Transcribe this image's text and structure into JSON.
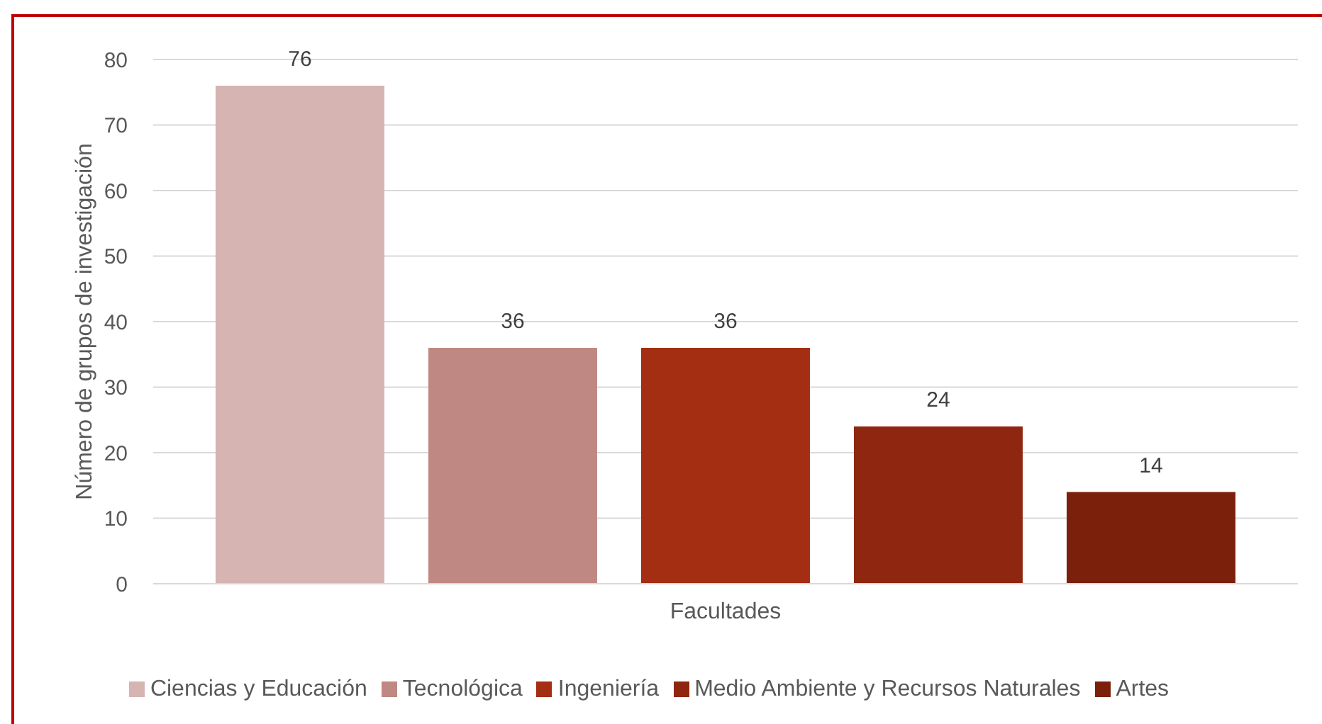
{
  "chart_data": {
    "type": "bar",
    "categories": [
      "Facultades"
    ],
    "ylabel": "Número de grupos de investigación",
    "series": [
      {
        "name": "Ciencias y Educación",
        "color": "#d5b4b2",
        "values": [
          76
        ]
      },
      {
        "name": "Tecnológica",
        "color": "#bf8882",
        "values": [
          36
        ]
      },
      {
        "name": "Ingeniería",
        "color": "#a32e12",
        "values": [
          36
        ]
      },
      {
        "name": "Medio Ambiente y Recursos Naturales",
        "color": "#8f2710",
        "values": [
          24
        ]
      },
      {
        "name": "Artes",
        "color": "#7b210b",
        "values": [
          14
        ]
      }
    ],
    "ylim": [
      0,
      80
    ],
    "yticks": [
      0,
      10,
      20,
      30,
      40,
      50,
      60,
      70,
      80
    ],
    "grid": "y",
    "legend": "bottom",
    "data_labels": true
  }
}
